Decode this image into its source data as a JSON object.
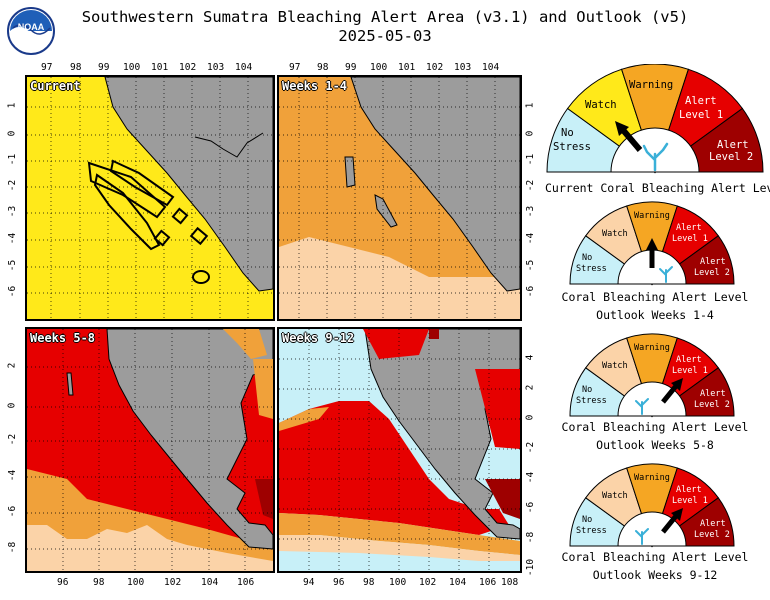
{
  "title_line1": "Southwestern Sumatra Bleaching Alert Area (v3.1) and Outlook (v5)",
  "title_line2": "2025-05-03",
  "logo": {
    "text": "NOAA",
    "icon": "noaa-logo-icon"
  },
  "colors": {
    "no_stress": "#c8f0f8",
    "watch": "#ffe91a",
    "warning": "#f5a623",
    "alert_level_1": "#e60000",
    "alert_level_2": "#9e0000",
    "land": "#9c9c9c",
    "outlook_watch": "#fbd3a8",
    "outlook_warning": "#f0a13a"
  },
  "levels": {
    "no_stress": "No Stress",
    "watch": "Watch",
    "warning": "Warning",
    "alert1_l1": "Alert",
    "alert1_l2": "Level 1",
    "alert2_l1": "Alert",
    "alert2_l2": "Level 2",
    "nostress_l1": "No",
    "nostress_l2": "Stress"
  },
  "panels": [
    {
      "label": "Current",
      "dominant_level": "Watch",
      "top_lon_ticks": [
        "97",
        "98",
        "99",
        "100",
        "101",
        "102",
        "103",
        "104"
      ],
      "left_lat_ticks": [
        "1",
        "0",
        "-1",
        "-2",
        "-3",
        "-4",
        "-5",
        "-6"
      ]
    },
    {
      "label": "Weeks 1-4",
      "dominant_level": "Warning",
      "top_lon_ticks": [
        "97",
        "98",
        "99",
        "100",
        "101",
        "102",
        "103",
        "104"
      ],
      "right_lat_ticks": [
        "1",
        "0",
        "-1",
        "-2",
        "-3",
        "-4",
        "-5",
        "-6"
      ]
    },
    {
      "label": "Weeks 5-8",
      "dominant_level": "Alert Level 1",
      "bottom_lon_ticks": [
        "96",
        "98",
        "100",
        "102",
        "104",
        "106"
      ],
      "left_lat_ticks": [
        "2",
        "0",
        "-2",
        "-4",
        "-6",
        "-8"
      ]
    },
    {
      "label": "Weeks 9-12",
      "dominant_level": "Alert Level 1",
      "bottom_lon_ticks": [
        "94",
        "96",
        "98",
        "100",
        "102",
        "104",
        "106",
        "108"
      ],
      "right_lat_ticks": [
        "4",
        "2",
        "0",
        "-2",
        "-4",
        "-6",
        "-8",
        "-10"
      ]
    }
  ],
  "gauges": [
    {
      "caption_l1": "Current Coral Bleaching Alert Level",
      "caption_l2": "",
      "pointer_level": "Watch"
    },
    {
      "caption_l1": "Coral Bleaching Alert Level",
      "caption_l2": "Outlook Weeks 1-4",
      "pointer_level": "Warning"
    },
    {
      "caption_l1": "Coral Bleaching Alert Level",
      "caption_l2": "Outlook Weeks 5-8",
      "pointer_level": "Alert Level 1"
    },
    {
      "caption_l1": "Coral Bleaching Alert Level",
      "caption_l2": "Outlook Weeks 9-12",
      "pointer_level": "Alert Level 1"
    }
  ]
}
